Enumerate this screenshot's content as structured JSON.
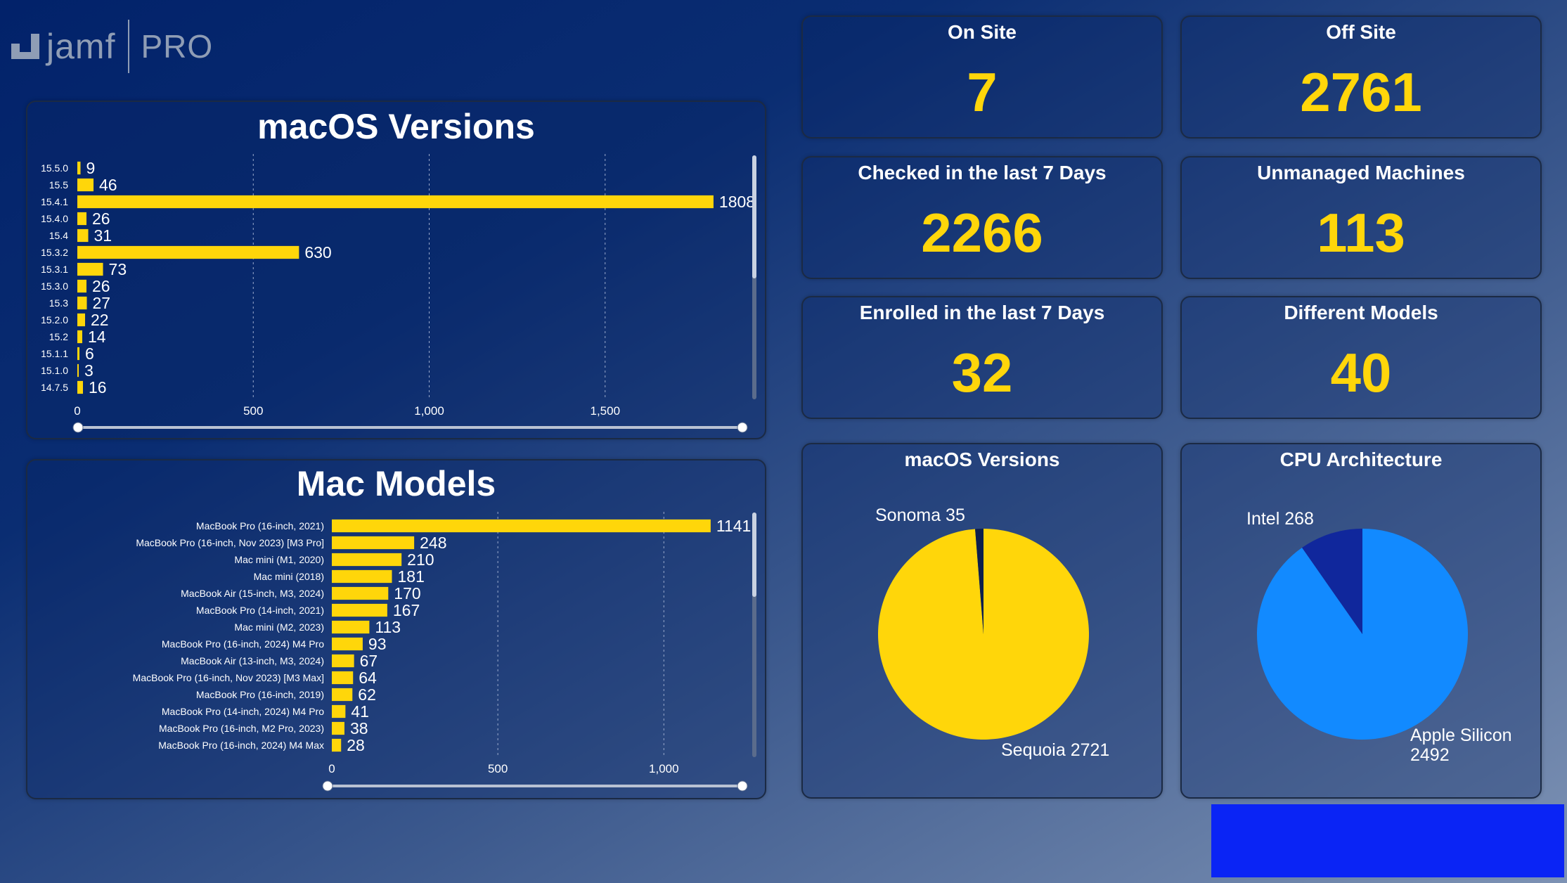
{
  "logo": {
    "brand": "jamf",
    "product": "PRO",
    "mark_icon": "jamf-logo-icon"
  },
  "charts": {
    "macos_versions": {
      "title": "macOS Versions",
      "chart_data": {
        "type": "bar",
        "orientation": "horizontal",
        "title": "macOS Versions",
        "categories": [
          "15.5.0",
          "15.5",
          "15.4.1",
          "15.4.0",
          "15.4",
          "15.3.2",
          "15.3.1",
          "15.3.0",
          "15.3",
          "15.2.0",
          "15.2",
          "15.1.1",
          "15.1.0",
          "14.7.5"
        ],
        "values": [
          9,
          46,
          1808,
          26,
          31,
          630,
          73,
          26,
          27,
          22,
          14,
          6,
          3,
          16
        ],
        "xlim": [
          0,
          1950
        ],
        "ticks": [
          0,
          500,
          1000,
          1500
        ],
        "tick_labels": [
          "0",
          "500",
          "1,000",
          "1,500"
        ],
        "grid": true,
        "bar_color": "#ffd60a"
      }
    },
    "mac_models": {
      "title": "Mac Models",
      "chart_data": {
        "type": "bar",
        "orientation": "horizontal",
        "title": "Mac Models",
        "categories": [
          "MacBook Pro (16-inch, 2021)",
          "MacBook Pro (16-inch, Nov 2023) [M3 Pro]",
          "Mac mini (M1, 2020)",
          "Mac mini (2018)",
          "MacBook Air (15-inch, M3, 2024)",
          "MacBook Pro (14-inch, 2021)",
          "Mac mini (M2, 2023)",
          "MacBook Pro (16-inch, 2024) M4 Pro",
          "MacBook Air (13-inch, M3, 2024)",
          "MacBook Pro (16-inch, Nov 2023) [M3 Max]",
          "MacBook Pro (16-inch, 2019)",
          "MacBook Pro (14-inch, 2024) M4 Pro",
          "MacBook Pro (16-inch, M2 Pro, 2023)",
          "MacBook Pro (16-inch, 2024) M4 Max"
        ],
        "values": [
          1141,
          248,
          210,
          181,
          170,
          167,
          113,
          93,
          67,
          64,
          62,
          41,
          38,
          28
        ],
        "xlim": [
          0,
          1300
        ],
        "ticks": [
          0,
          500,
          1000
        ],
        "tick_labels": [
          "0",
          "500",
          "1,000"
        ],
        "grid": true,
        "bar_color": "#ffd60a"
      }
    },
    "pie_macos": {
      "title": "macOS Versions",
      "chart_data": {
        "type": "pie",
        "title": "macOS Versions",
        "slices": [
          {
            "label": "Sequoia",
            "value": 2721,
            "color": "#ffd60a"
          },
          {
            "label": "Sonoma",
            "value": 35,
            "color": "#0d1f4d"
          }
        ]
      }
    },
    "pie_cpu": {
      "title": "CPU Architecture",
      "chart_data": {
        "type": "pie",
        "title": "CPU Architecture",
        "slices": [
          {
            "label": "Apple Silicon",
            "value": 2492,
            "color": "#128aff"
          },
          {
            "label": "Intel",
            "value": 268,
            "color": "#10279c"
          }
        ]
      }
    }
  },
  "kpis": {
    "on_site": {
      "title": "On Site",
      "value": "7"
    },
    "off_site": {
      "title": "Off Site",
      "value": "2761"
    },
    "checked_in": {
      "title": "Checked in the last 7 Days",
      "value": "2266"
    },
    "unmanaged": {
      "title": "Unmanaged Machines",
      "value": "113"
    },
    "enrolled": {
      "title": "Enrolled in the last 7 Days",
      "value": "32"
    },
    "models": {
      "title": "Different Models",
      "value": "40"
    }
  },
  "pie_labels": {
    "sonoma": "Sonoma 35",
    "sequoia": "Sequoia 2721",
    "intel": "Intel 268",
    "apple_silicon_1": "Apple Silicon",
    "apple_silicon_2": "2492"
  }
}
